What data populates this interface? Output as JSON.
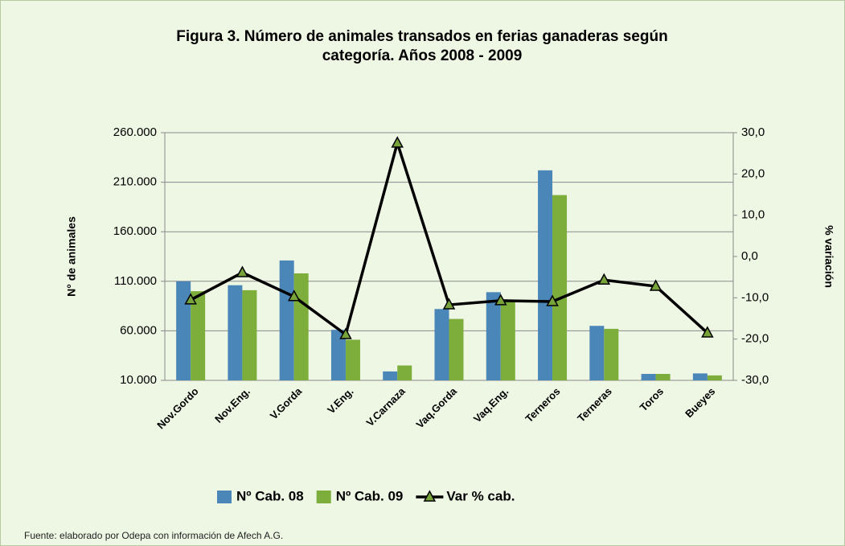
{
  "chart_data": {
    "type": "bar",
    "title": [
      "Figura 3. Número de animales transados  en ferias ganaderas  según",
      "categoría. Años 2008 - 2009"
    ],
    "ylabel": "N° de animales",
    "y2label": "% variación",
    "categories": [
      "Nov.Gordo",
      "Nov.Eng.",
      "V.Gorda",
      "V.Eng.",
      "V.Carnaza",
      "Vaq.Gorda",
      "Vaq.Eng.",
      "Terneros",
      "Terneras",
      "Toros",
      "Bueyes"
    ],
    "series": [
      {
        "name": "Nº Cab. 08",
        "type": "bar",
        "color": "#4a86b8",
        "values": [
          110000,
          106000,
          131000,
          61000,
          19000,
          82000,
          99000,
          222000,
          65000,
          16500,
          17000
        ]
      },
      {
        "name": "Nº Cab. 09",
        "type": "bar",
        "color": "#7dae3c",
        "values": [
          100000,
          101000,
          118000,
          51000,
          25000,
          72000,
          89500,
          197000,
          62000,
          16500,
          15000
        ]
      },
      {
        "name": "Var % cab.",
        "type": "line",
        "axis": "y2",
        "color": "#000000",
        "marker_color": "#77a33a",
        "values": [
          -10.5,
          -3.9,
          -9.7,
          -18.9,
          27.5,
          -11.7,
          -10.7,
          -10.9,
          -5.7,
          -7.2,
          -18.5
        ]
      }
    ],
    "ylim": [
      10000,
      260000
    ],
    "yticks": [
      {
        "value": 10000,
        "label": "10.000"
      },
      {
        "value": 60000,
        "label": "60.000"
      },
      {
        "value": 110000,
        "label": "110.000"
      },
      {
        "value": 160000,
        "label": "160.000"
      },
      {
        "value": 210000,
        "label": "210.000"
      },
      {
        "value": 260000,
        "label": "260.000"
      }
    ],
    "y2lim": [
      -30,
      30
    ],
    "y2ticks": [
      {
        "value": -30,
        "label": "-30,0"
      },
      {
        "value": -20,
        "label": "-20,0"
      },
      {
        "value": -10,
        "label": "-10,0"
      },
      {
        "value": 0,
        "label": "0,0"
      },
      {
        "value": 10,
        "label": "10,0"
      },
      {
        "value": 20,
        "label": "20,0"
      },
      {
        "value": 30,
        "label": "30,0"
      }
    ],
    "grid": true,
    "legend": "bottom"
  },
  "source": "Fuente: elaborado por Odepa con información de Afech A.G."
}
